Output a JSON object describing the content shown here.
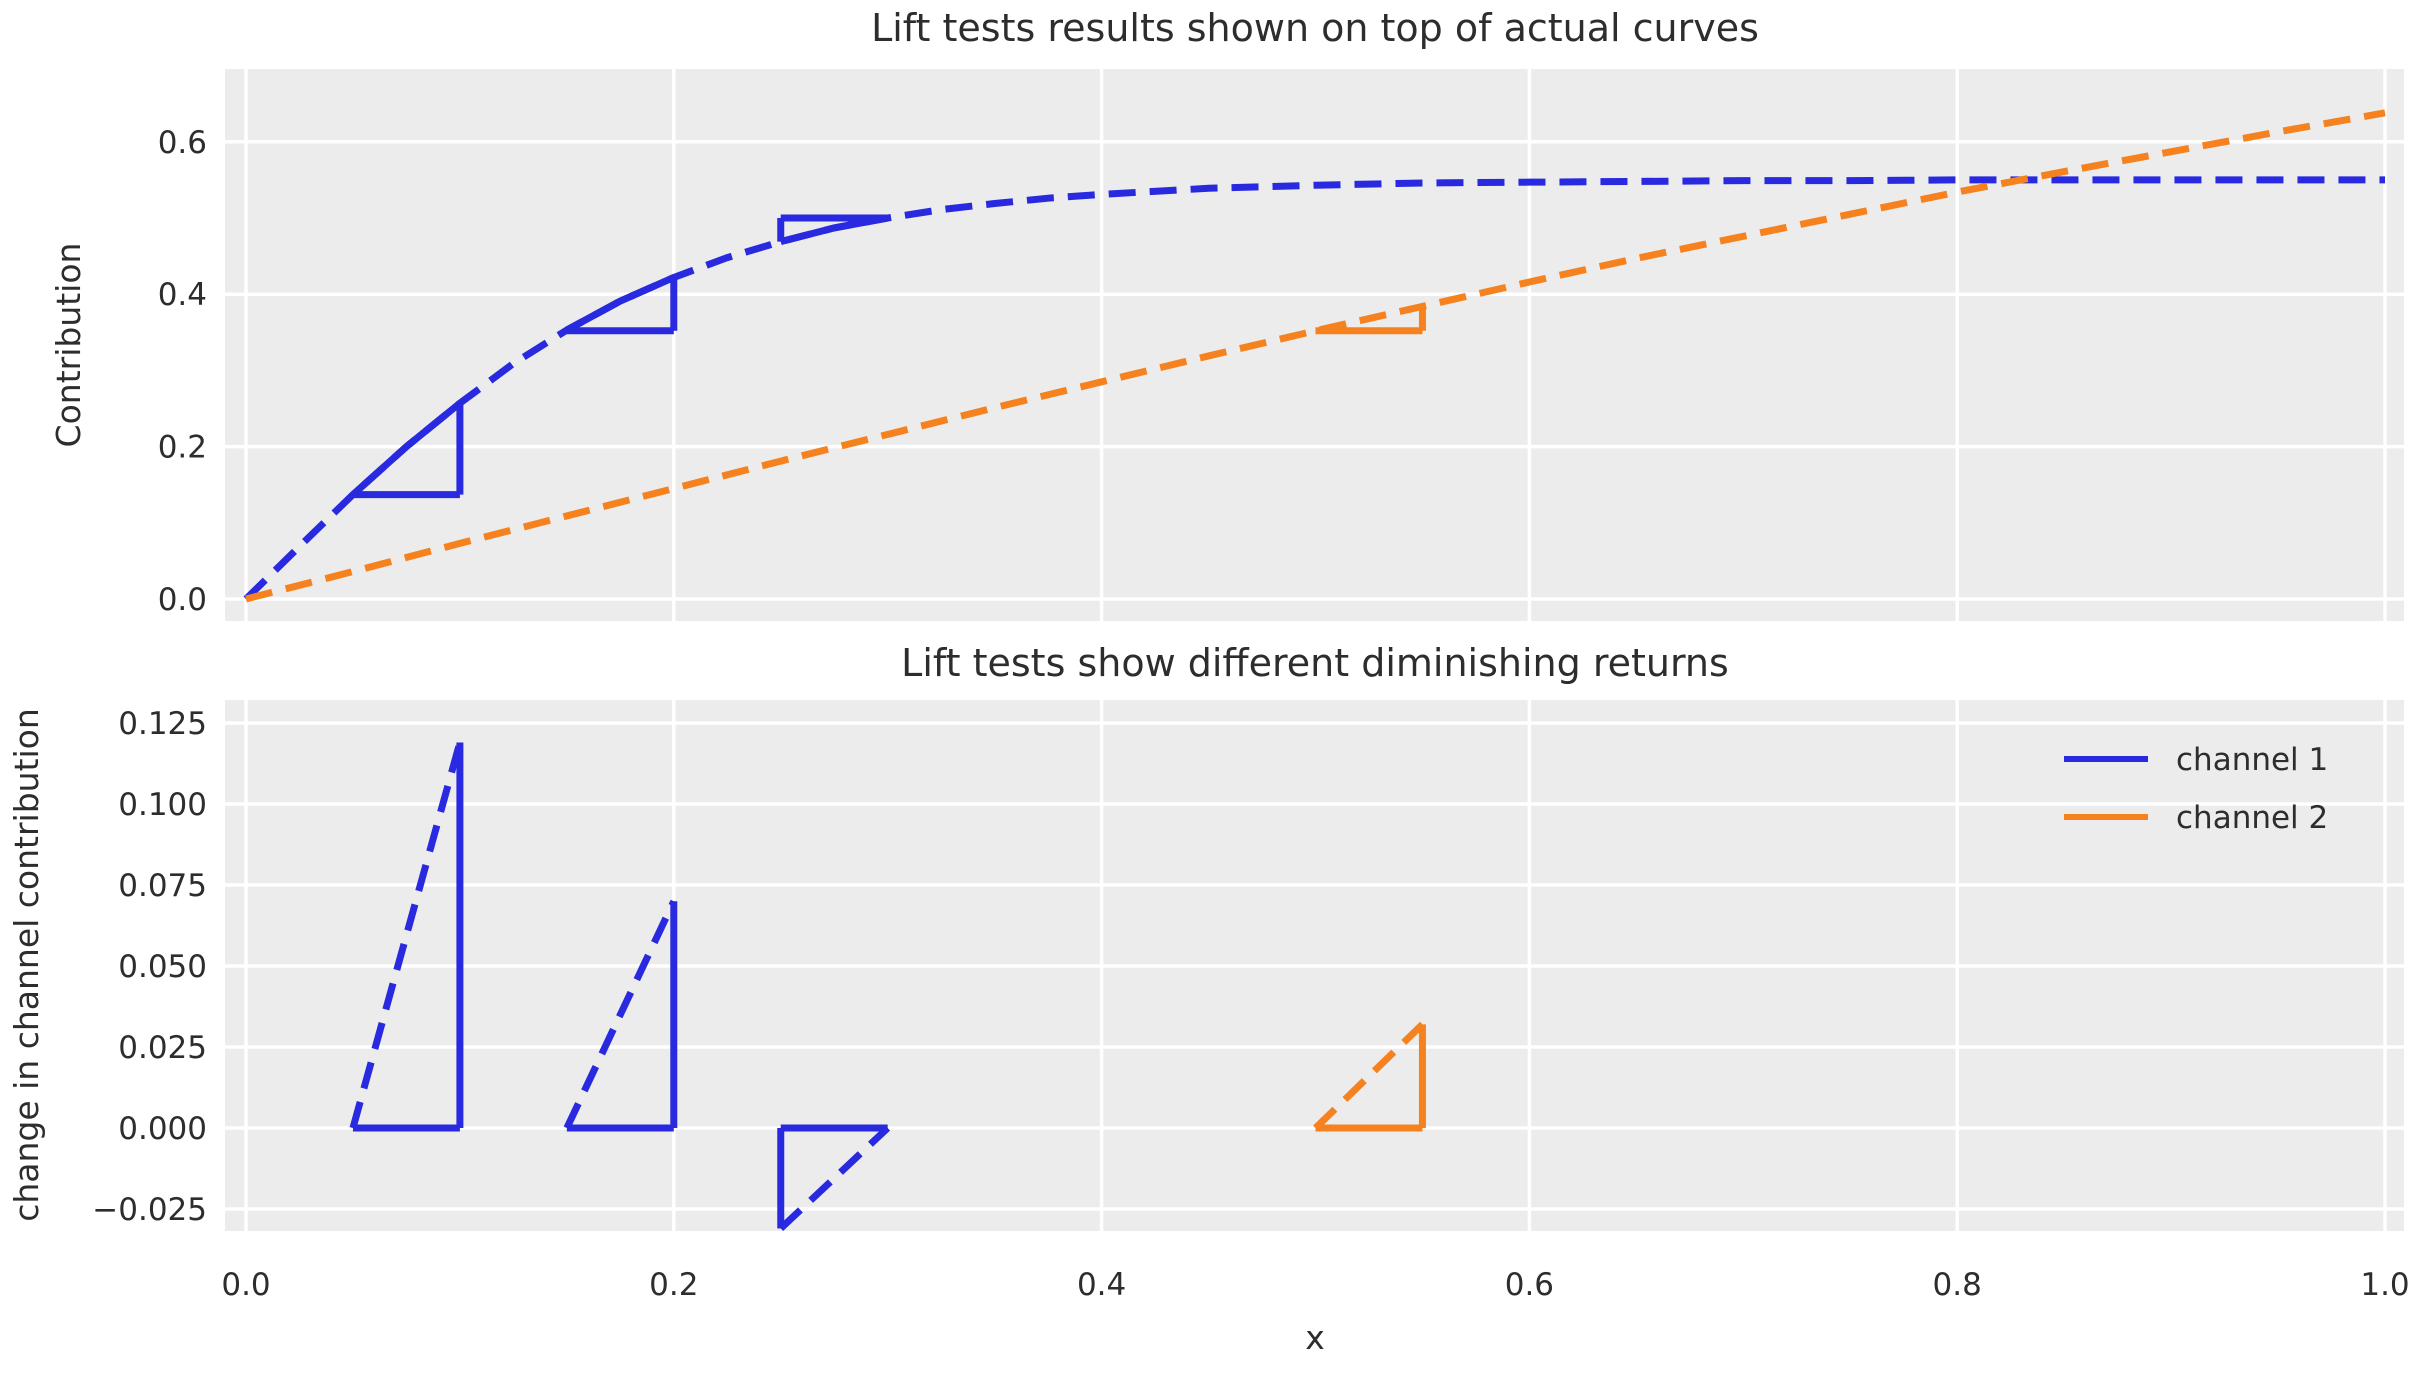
{
  "figure": {
    "background": "#ffffff",
    "plot_background": "#ececec",
    "grid_color": "#ffffff",
    "text_color": "#2d2d2d"
  },
  "colors": {
    "channel1": "#2929e0",
    "channel2": "#f5821f"
  },
  "top_plot": {
    "title": "Lift tests results shown on top of actual curves",
    "ylabel": "Contribution"
  },
  "bottom_plot": {
    "title": "Lift tests show different diminishing returns",
    "ylabel": "change in channel contribution",
    "xlabel": "x"
  },
  "legend": {
    "entries": [
      {
        "label": "channel 1",
        "color_key": "channel1"
      },
      {
        "label": "channel 2",
        "color_key": "channel2"
      }
    ]
  },
  "chart_data": [
    {
      "type": "line",
      "title": "Lift tests results shown on top of actual curves",
      "ylabel": "Contribution",
      "xlim": [
        -0.01,
        1.01
      ],
      "ylim": [
        -0.029,
        0.695
      ],
      "grid": true,
      "yticks": [
        {
          "v": 0.0,
          "label": "0.0"
        },
        {
          "v": 0.2,
          "label": "0.2"
        },
        {
          "v": 0.4,
          "label": "0.4"
        },
        {
          "v": 0.6,
          "label": "0.6"
        }
      ],
      "series": [
        {
          "name": "channel 1",
          "color_key": "channel1",
          "style": "dashed",
          "x": [
            0,
            0.025,
            0.05,
            0.075,
            0.1,
            0.125,
            0.15,
            0.175,
            0.2,
            0.225,
            0.25,
            0.275,
            0.3,
            0.325,
            0.35,
            0.375,
            0.4,
            0.45,
            0.5,
            0.55,
            0.6,
            0.65,
            0.7,
            0.75,
            0.8,
            0.85,
            0.9,
            0.95,
            1.0
          ],
          "y": [
            0,
            0.069,
            0.137,
            0.2,
            0.257,
            0.309,
            0.353,
            0.391,
            0.422,
            0.448,
            0.469,
            0.487,
            0.5,
            0.511,
            0.519,
            0.526,
            0.531,
            0.539,
            0.543,
            0.546,
            0.547,
            0.548,
            0.549,
            0.549,
            0.55,
            0.55,
            0.55,
            0.55,
            0.55
          ]
        },
        {
          "name": "channel 2",
          "color_key": "channel2",
          "style": "dashed",
          "x": [
            0,
            0.05,
            0.1,
            0.15,
            0.2,
            0.25,
            0.3,
            0.35,
            0.4,
            0.45,
            0.5,
            0.55,
            0.6,
            0.65,
            0.7,
            0.75,
            0.8,
            0.85,
            0.9,
            0.95,
            1.0
          ],
          "y": [
            0,
            0.036,
            0.073,
            0.109,
            0.145,
            0.181,
            0.216,
            0.251,
            0.285,
            0.319,
            0.352,
            0.384,
            0.416,
            0.447,
            0.476,
            0.505,
            0.534,
            0.561,
            0.587,
            0.613,
            0.638
          ]
        }
      ],
      "lift_tests": [
        {
          "channel": "channel 1",
          "color_key": "channel1",
          "x0": 0.05,
          "x1": 0.1,
          "y0": 0.137,
          "y1": 0.257,
          "delta": 0.119,
          "solid_hypotenuse": true
        },
        {
          "channel": "channel 1",
          "color_key": "channel1",
          "x0": 0.15,
          "x1": 0.2,
          "y0": 0.352,
          "y1": 0.422,
          "delta": 0.07,
          "solid_hypotenuse": true
        },
        {
          "channel": "channel 1",
          "color_key": "channel1",
          "x0": 0.25,
          "x1": 0.3,
          "y0": 0.469,
          "y1": 0.5,
          "delta": -0.031,
          "solid_hypotenuse": true
        },
        {
          "channel": "channel 2",
          "color_key": "channel2",
          "x0": 0.5,
          "x1": 0.55,
          "y0": 0.352,
          "y1": 0.384,
          "delta": 0.032,
          "solid_hypotenuse": false
        }
      ]
    },
    {
      "type": "line",
      "title": "Lift tests show different diminishing returns",
      "ylabel": "change in channel contribution",
      "xlabel": "x",
      "xlim": [
        -0.01,
        1.01
      ],
      "ylim": [
        -0.0318,
        0.132
      ],
      "grid": true,
      "legend_position": "upper right",
      "yticks": [
        {
          "v": 0.125,
          "label": "0.125"
        },
        {
          "v": 0.1,
          "label": "0.100"
        },
        {
          "v": 0.075,
          "label": "0.075"
        },
        {
          "v": 0.05,
          "label": "0.050"
        },
        {
          "v": 0.025,
          "label": "0.025"
        },
        {
          "v": 0.0,
          "label": "0.000"
        },
        {
          "v": -0.025,
          "label": "−0.025"
        }
      ],
      "triangles": [
        {
          "channel": "channel 1",
          "color_key": "channel1",
          "x0": 0.05,
          "x1": 0.1,
          "delta": 0.119
        },
        {
          "channel": "channel 1",
          "color_key": "channel1",
          "x0": 0.15,
          "x1": 0.2,
          "delta": 0.07
        },
        {
          "channel": "channel 1",
          "color_key": "channel1",
          "x0": 0.25,
          "x1": 0.3,
          "delta": -0.031
        },
        {
          "channel": "channel 2",
          "color_key": "channel2",
          "x0": 0.5,
          "x1": 0.55,
          "delta": 0.032
        }
      ]
    }
  ],
  "xticks": [
    {
      "v": 0.0,
      "label": "0.0"
    },
    {
      "v": 0.2,
      "label": "0.2"
    },
    {
      "v": 0.4,
      "label": "0.4"
    },
    {
      "v": 0.6,
      "label": "0.6"
    },
    {
      "v": 0.8,
      "label": "0.8"
    },
    {
      "v": 1.0,
      "label": "1.0"
    }
  ]
}
